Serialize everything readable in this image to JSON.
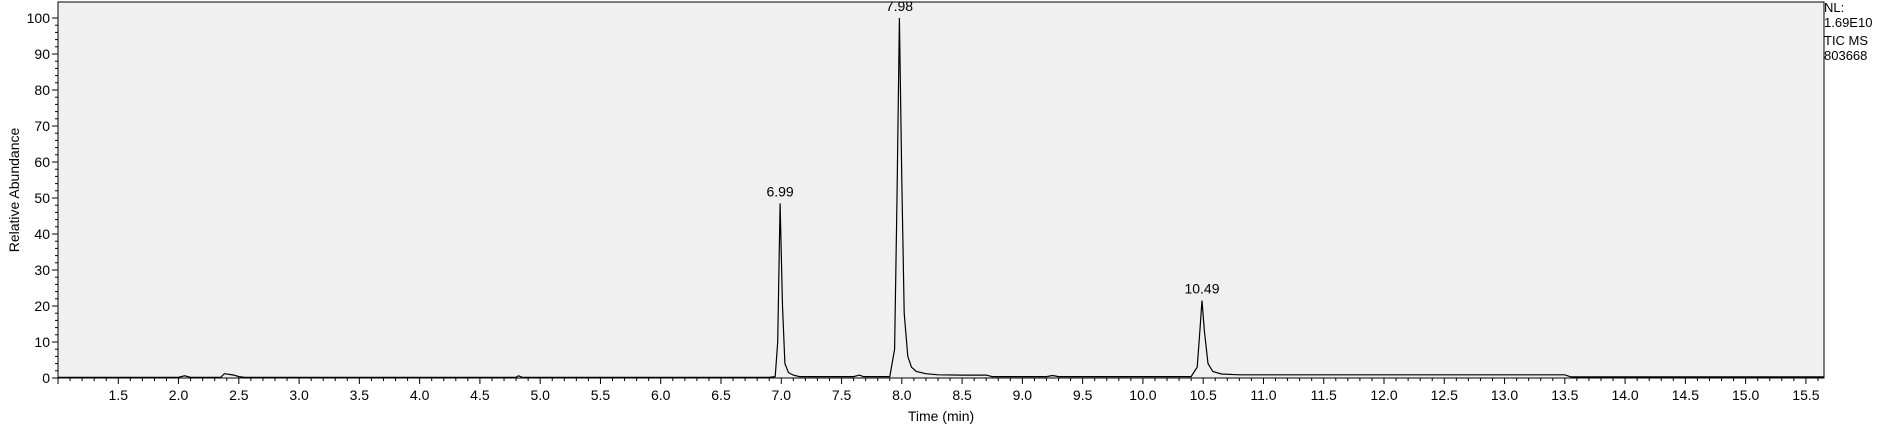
{
  "chart_data": {
    "type": "line",
    "xlabel": "Time (min)",
    "ylabel": "Relative Abundance",
    "xlim": [
      1.0,
      15.65
    ],
    "ylim": [
      0,
      100
    ],
    "x_ticks": [
      1.5,
      2.0,
      2.5,
      3.0,
      3.5,
      4.0,
      4.5,
      5.0,
      5.5,
      6.0,
      6.5,
      7.0,
      7.5,
      8.0,
      8.5,
      9.0,
      9.5,
      10.0,
      10.5,
      11.0,
      11.5,
      12.0,
      12.5,
      13.0,
      13.5,
      14.0,
      14.5,
      15.0,
      15.5
    ],
    "y_ticks": [
      0,
      10,
      20,
      30,
      40,
      50,
      60,
      70,
      80,
      90,
      100
    ],
    "grid": false,
    "background": "#f0f0f0",
    "line_color": "#000000",
    "series": [
      {
        "x": [
          1.0,
          2.0,
          2.05,
          2.1,
          2.35,
          2.38,
          2.42,
          2.46,
          2.5,
          2.55,
          4.8,
          4.82,
          4.85,
          6.9,
          6.95,
          6.97,
          6.99,
          7.01,
          7.03,
          7.06,
          7.1,
          7.15,
          7.6,
          7.65,
          7.68,
          7.9,
          7.94,
          7.96,
          7.98,
          8.0,
          8.02,
          8.05,
          8.08,
          8.12,
          8.2,
          8.3,
          8.5,
          8.7,
          8.75,
          9.2,
          9.25,
          9.3,
          10.4,
          10.45,
          10.47,
          10.49,
          10.51,
          10.54,
          10.58,
          10.65,
          10.8,
          11.5,
          13.5,
          13.55,
          15.65
        ],
        "y": [
          0.2,
          0.2,
          0.6,
          0.2,
          0.2,
          1.2,
          1.0,
          0.8,
          0.4,
          0.2,
          0.2,
          0.6,
          0.2,
          0.2,
          0.4,
          10,
          48.5,
          20,
          4,
          1.5,
          0.8,
          0.4,
          0.4,
          0.8,
          0.4,
          0.4,
          8,
          50,
          100,
          55,
          18,
          6,
          3,
          1.8,
          1.2,
          0.9,
          0.8,
          0.8,
          0.4,
          0.4,
          0.7,
          0.4,
          0.4,
          3,
          12,
          21.5,
          13,
          4,
          1.8,
          1.1,
          0.9,
          0.9,
          0.9,
          0.3,
          0.3
        ]
      }
    ],
    "peak_labels": [
      {
        "x": 6.99,
        "y": 48.5,
        "text": "6.99"
      },
      {
        "x": 7.98,
        "y": 100,
        "text": "7.98"
      },
      {
        "x": 10.49,
        "y": 21.5,
        "text": "10.49"
      }
    ]
  },
  "info": [
    "NL:",
    "1.69E10",
    "TIC  MS",
    "803668"
  ]
}
